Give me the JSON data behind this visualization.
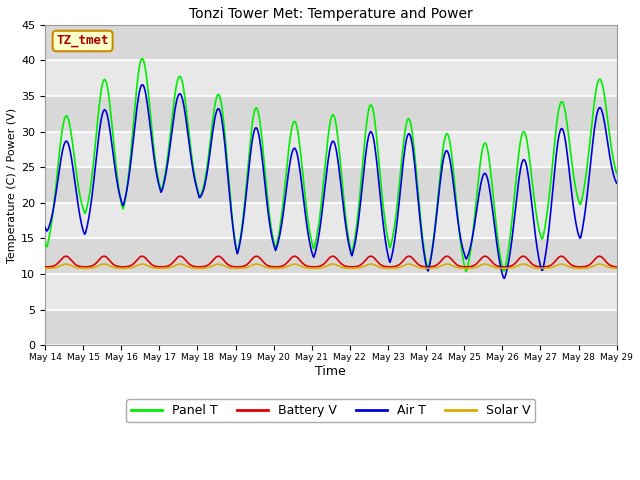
{
  "title": "Tonzi Tower Met: Temperature and Power",
  "xlabel": "Time",
  "ylabel": "Temperature (C) / Power (V)",
  "ylim": [
    0,
    45
  ],
  "yticks": [
    0,
    5,
    10,
    15,
    20,
    25,
    30,
    35,
    40,
    45
  ],
  "watermark": "TZ_tmet",
  "fig_bg_color": "#ffffff",
  "plot_bg_color": "#e8e8e8",
  "stripe_color": "#d0d0d0",
  "legend_entries": [
    "Panel T",
    "Battery V",
    "Air T",
    "Solar V"
  ],
  "line_colors": {
    "panel_t": "#00ee00",
    "battery_v": "#dd0000",
    "air_t": "#0000dd",
    "solar_v": "#ddaa00"
  },
  "n_days": 15,
  "start_day": 14
}
